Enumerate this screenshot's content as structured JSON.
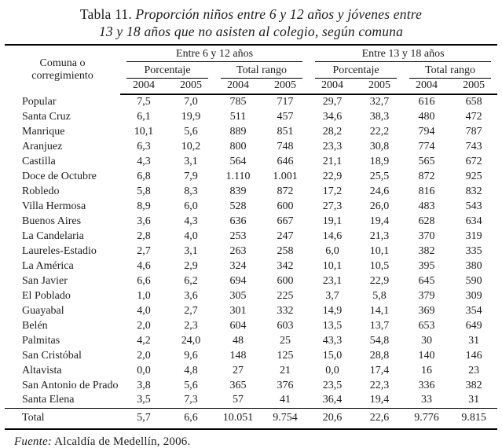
{
  "title": {
    "prefix": "Tabla 11.",
    "line1": "Proporción niños entre 6 y 12 años y jóvenes entre",
    "line2": "13 y 18 años que no asisten al colegio, según comuna"
  },
  "table": {
    "header": {
      "comuna": "Comuna o corregimiento",
      "groups": [
        "Entre 6 y 12 años",
        "Entre 13 y 18 años"
      ],
      "subgroups": [
        "Porcentaje",
        "Total rango",
        "Porcentaje",
        "Total rango"
      ],
      "years": [
        "2004",
        "2005",
        "2004",
        "2005",
        "2004",
        "2005",
        "2004",
        "2005"
      ]
    },
    "rows": [
      {
        "name": "Popular",
        "values": [
          "7,5",
          "7,0",
          "785",
          "717",
          "29,7",
          "32,7",
          "616",
          "658"
        ]
      },
      {
        "name": "Santa Cruz",
        "values": [
          "6,1",
          "19,9",
          "511",
          "457",
          "34,6",
          "38,3",
          "480",
          "472"
        ]
      },
      {
        "name": "Manrique",
        "values": [
          "10,1",
          "5,6",
          "889",
          "851",
          "28,2",
          "22,2",
          "794",
          "787"
        ]
      },
      {
        "name": "Aranjuez",
        "values": [
          "6,3",
          "10,2",
          "800",
          "748",
          "23,3",
          "30,8",
          "774",
          "743"
        ]
      },
      {
        "name": "Castilla",
        "values": [
          "4,3",
          "3,1",
          "564",
          "646",
          "21,1",
          "18,9",
          "565",
          "672"
        ]
      },
      {
        "name": "Doce de Octubre",
        "values": [
          "6,8",
          "7,9",
          "1.110",
          "1.001",
          "22,9",
          "25,5",
          "872",
          "925"
        ]
      },
      {
        "name": "Robledo",
        "values": [
          "5,8",
          "8,3",
          "839",
          "872",
          "17,2",
          "24,6",
          "816",
          "832"
        ]
      },
      {
        "name": "Villa Hermosa",
        "values": [
          "8,9",
          "6,0",
          "528",
          "600",
          "27,3",
          "26,0",
          "483",
          "543"
        ]
      },
      {
        "name": "Buenos Aires",
        "values": [
          "3,6",
          "4,3",
          "636",
          "667",
          "19,1",
          "19,4",
          "628",
          "634"
        ]
      },
      {
        "name": "La Candelaria",
        "values": [
          "2,8",
          "4,0",
          "253",
          "247",
          "14,6",
          "21,3",
          "370",
          "319"
        ]
      },
      {
        "name": "Laureles-Estadio",
        "values": [
          "2,7",
          "3,1",
          "263",
          "258",
          "6,0",
          "10,1",
          "382",
          "335"
        ]
      },
      {
        "name": "La América",
        "values": [
          "4,6",
          "2,9",
          "324",
          "342",
          "10,1",
          "10,5",
          "395",
          "380"
        ]
      },
      {
        "name": "San Javier",
        "values": [
          "6,6",
          "6,2",
          "694",
          "600",
          "23,1",
          "22,9",
          "645",
          "590"
        ]
      },
      {
        "name": "El Poblado",
        "values": [
          "1,0",
          "3,6",
          "305",
          "225",
          "3,7",
          "5,8",
          "379",
          "309"
        ]
      },
      {
        "name": "Guayabal",
        "values": [
          "4,0",
          "2,7",
          "301",
          "332",
          "14,9",
          "14,1",
          "369",
          "354"
        ]
      },
      {
        "name": "Belén",
        "values": [
          "2,0",
          "2,3",
          "604",
          "603",
          "13,5",
          "13,7",
          "653",
          "649"
        ]
      },
      {
        "name": "Palmitas",
        "values": [
          "4,2",
          "24,0",
          "48",
          "25",
          "43,3",
          "54,8",
          "30",
          "31"
        ]
      },
      {
        "name": "San Cristóbal",
        "values": [
          "2,0",
          "9,6",
          "148",
          "125",
          "15,0",
          "28,8",
          "140",
          "146"
        ]
      },
      {
        "name": "Altavista",
        "values": [
          "0,0",
          "4,8",
          "27",
          "21",
          "0,0",
          "17,4",
          "16",
          "23"
        ]
      },
      {
        "name": "San Antonio de Prado",
        "values": [
          "3,8",
          "5,6",
          "365",
          "376",
          "23,5",
          "22,3",
          "336",
          "382"
        ]
      },
      {
        "name": "Santa Elena",
        "values": [
          "3,5",
          "7,3",
          "57",
          "41",
          "36,4",
          "19,4",
          "33",
          "31"
        ]
      }
    ],
    "total": {
      "name": "Total",
      "values": [
        "5,7",
        "6,6",
        "10.051",
        "9.754",
        "20,6",
        "22,6",
        "9.776",
        "9.815"
      ]
    }
  },
  "footer": {
    "label": "Fuente:",
    "text": " Alcaldía de Medellín, 2006."
  },
  "colors": {
    "text": "#1c1c1c",
    "rule": "#000000",
    "background": "#ffffff"
  }
}
